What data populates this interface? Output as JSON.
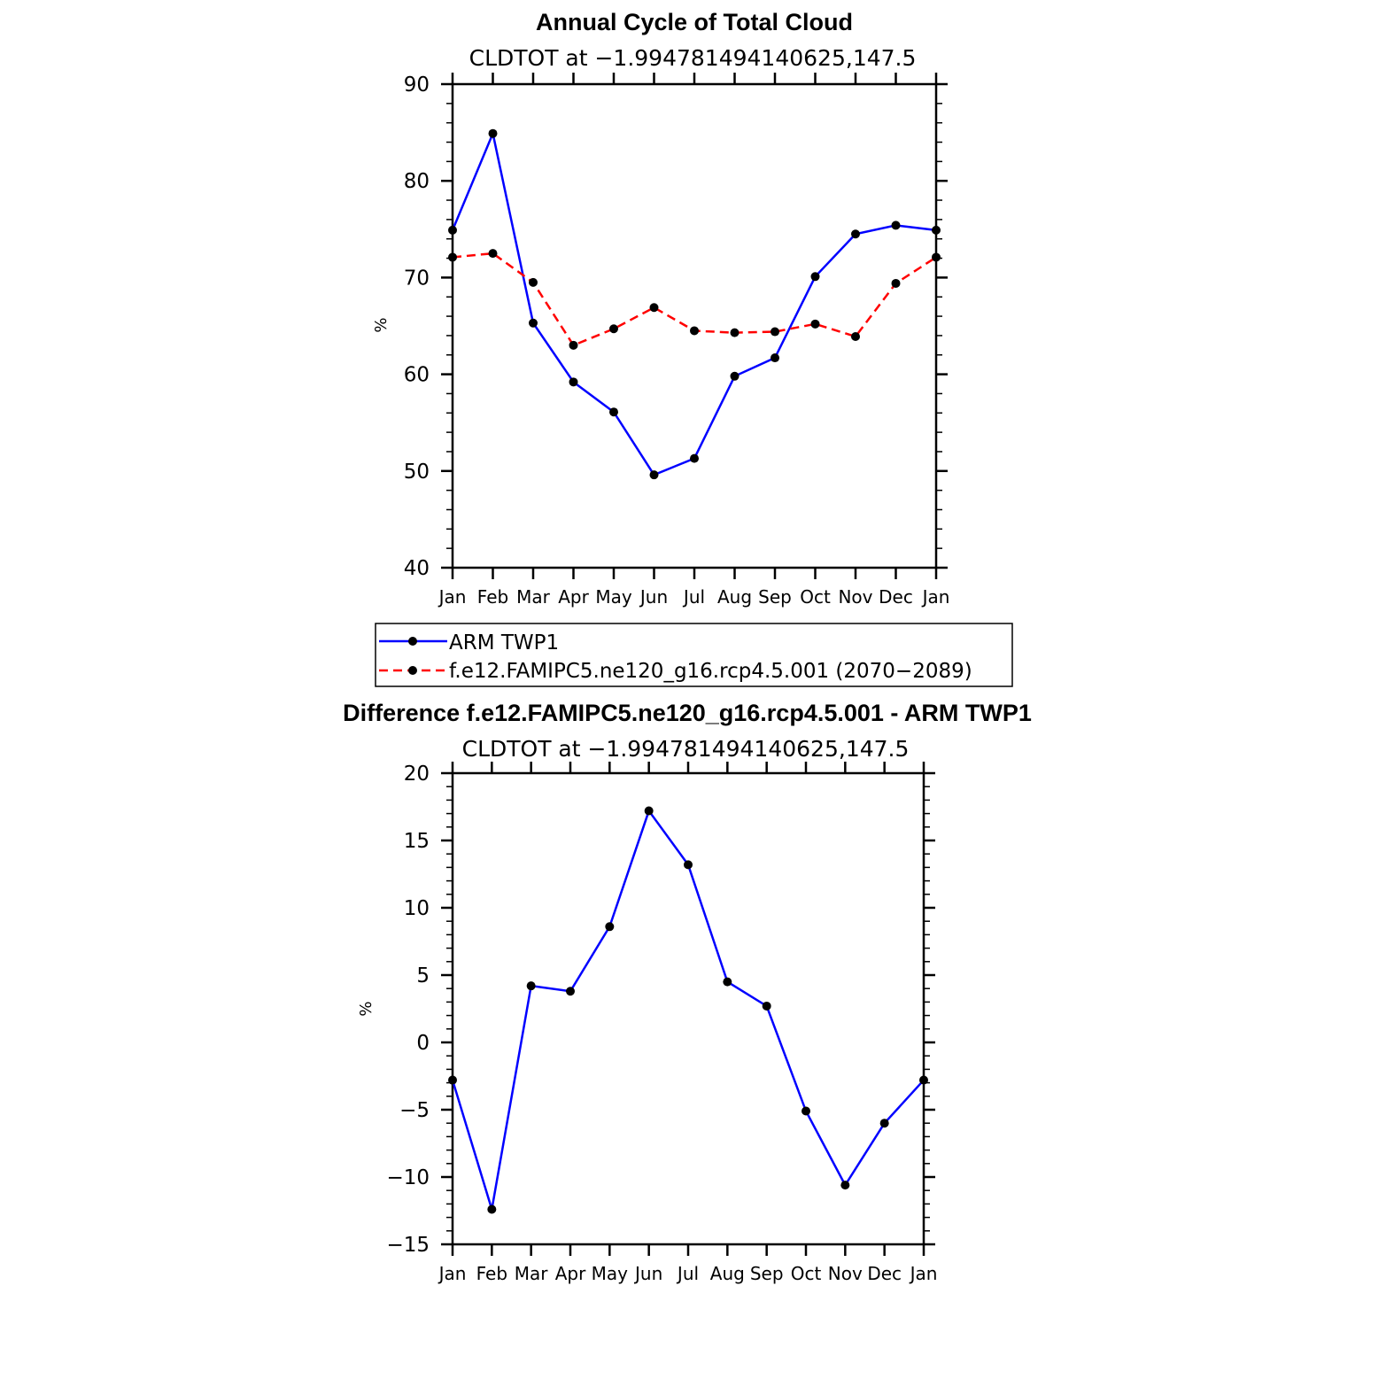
{
  "chart_data": [
    {
      "type": "line",
      "title": "Annual Cycle of Total Cloud",
      "subtitle": "CLDTOT at −1.994781494140625,147.5",
      "ylabel": "%",
      "xlabel": "",
      "categories": [
        "Jan",
        "Feb",
        "Mar",
        "Apr",
        "May",
        "Jun",
        "Jul",
        "Aug",
        "Sep",
        "Oct",
        "Nov",
        "Dec",
        "Jan"
      ],
      "ylim": [
        40,
        90
      ],
      "yticks": [
        "40",
        "50",
        "60",
        "70",
        "80",
        "90"
      ],
      "legend_position": "below",
      "series": [
        {
          "name": "ARM  TWP1",
          "color": "#0000ff",
          "dash": "solid",
          "values": [
            74.9,
            84.9,
            65.3,
            59.2,
            56.1,
            49.6,
            51.3,
            59.8,
            61.7,
            70.1,
            74.5,
            75.4,
            74.9
          ]
        },
        {
          "name": "f.e12.FAMIPC5.ne120_g16.rcp4.5.001 (2070−2089)",
          "color": "#ff0000",
          "dash": "dashed",
          "values": [
            72.1,
            72.5,
            69.5,
            63.0,
            64.7,
            66.9,
            64.5,
            64.3,
            64.4,
            65.2,
            63.9,
            69.4,
            72.1
          ]
        }
      ]
    },
    {
      "type": "line",
      "title": "Difference f.e12.FAMIPC5.ne120_g16.rcp4.5.001 - ARM TWP1",
      "subtitle": "CLDTOT at −1.994781494140625,147.5",
      "ylabel": "%",
      "xlabel": "",
      "categories": [
        "Jan",
        "Feb",
        "Mar",
        "Apr",
        "May",
        "Jun",
        "Jul",
        "Aug",
        "Sep",
        "Oct",
        "Nov",
        "Dec",
        "Jan"
      ],
      "ylim": [
        -15,
        20
      ],
      "yticks": [
        "−15",
        "−10",
        "−5",
        "0",
        "5",
        "10",
        "15",
        "20"
      ],
      "series": [
        {
          "color": "#0000ff",
          "dash": "solid",
          "values": [
            -2.8,
            -12.4,
            4.2,
            3.8,
            8.6,
            17.2,
            13.2,
            4.5,
            2.7,
            -5.1,
            -10.6,
            -6.0,
            -2.8
          ]
        }
      ]
    }
  ]
}
